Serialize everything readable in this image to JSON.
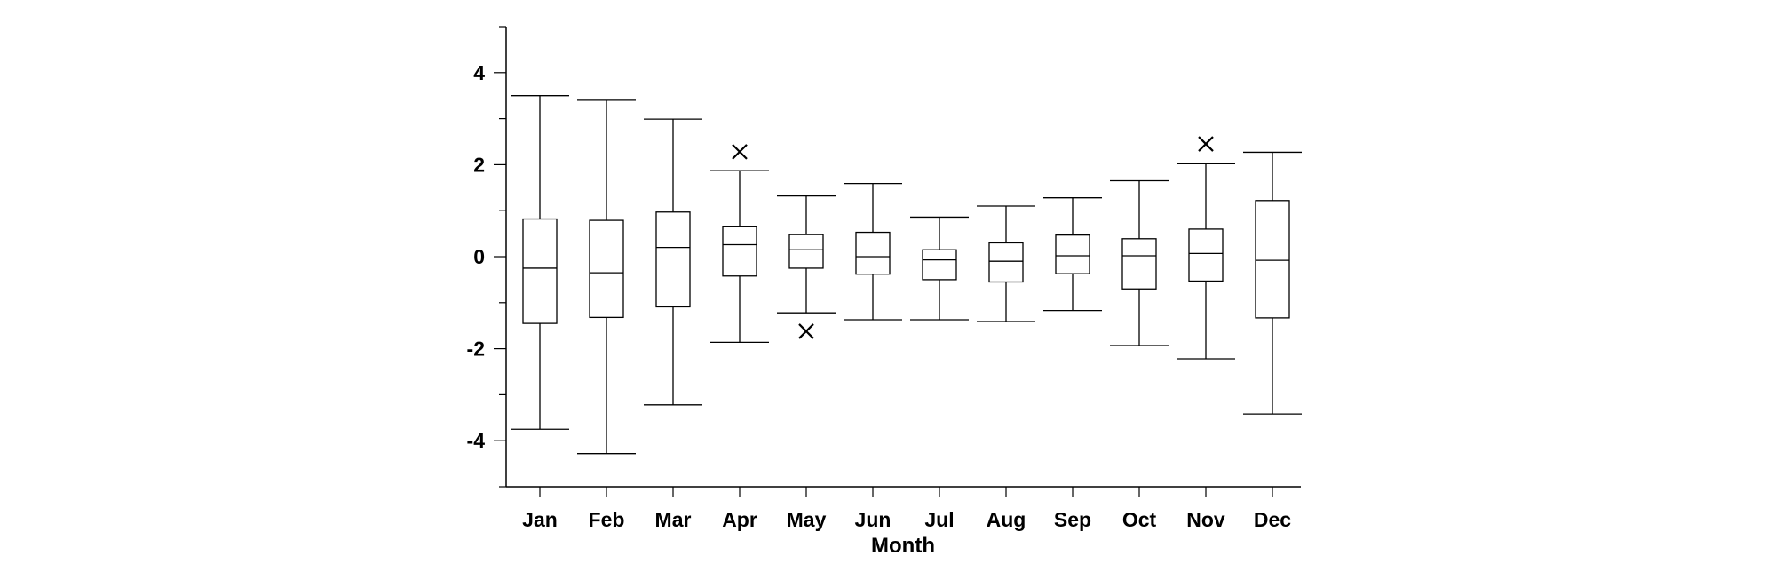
{
  "chart_data": {
    "type": "box",
    "xlabel": "Month",
    "ylabel": "",
    "ylim": [
      -5,
      5
    ],
    "yticks": [
      4,
      2,
      0,
      -2,
      -4
    ],
    "grid": false,
    "categories": [
      "Jan",
      "Feb",
      "Mar",
      "Apr",
      "May",
      "Jun",
      "Jul",
      "Aug",
      "Sep",
      "Oct",
      "Nov",
      "Dec"
    ],
    "boxes": [
      {
        "whisker_low": -3.75,
        "q1": -1.45,
        "median": -0.25,
        "q3": 0.82,
        "whisker_high": 3.5,
        "outliers": []
      },
      {
        "whisker_low": -4.28,
        "q1": -1.32,
        "median": -0.35,
        "q3": 0.79,
        "whisker_high": 3.4,
        "outliers": []
      },
      {
        "whisker_low": -3.22,
        "q1": -1.09,
        "median": 0.2,
        "q3": 0.97,
        "whisker_high": 2.99,
        "outliers": []
      },
      {
        "whisker_low": -1.86,
        "q1": -0.42,
        "median": 0.26,
        "q3": 0.65,
        "whisker_high": 1.87,
        "outliers": [
          2.28
        ]
      },
      {
        "whisker_low": -1.22,
        "q1": -0.25,
        "median": 0.15,
        "q3": 0.48,
        "whisker_high": 1.32,
        "outliers": [
          -1.62
        ]
      },
      {
        "whisker_low": -1.37,
        "q1": -0.38,
        "median": 0.0,
        "q3": 0.53,
        "whisker_high": 1.59,
        "outliers": []
      },
      {
        "whisker_low": -1.37,
        "q1": -0.5,
        "median": -0.07,
        "q3": 0.15,
        "whisker_high": 0.86,
        "outliers": []
      },
      {
        "whisker_low": -1.41,
        "q1": -0.55,
        "median": -0.1,
        "q3": 0.3,
        "whisker_high": 1.1,
        "outliers": []
      },
      {
        "whisker_low": -1.17,
        "q1": -0.37,
        "median": 0.02,
        "q3": 0.47,
        "whisker_high": 1.28,
        "outliers": []
      },
      {
        "whisker_low": -1.93,
        "q1": -0.7,
        "median": 0.02,
        "q3": 0.39,
        "whisker_high": 1.65,
        "outliers": []
      },
      {
        "whisker_low": -2.22,
        "q1": -0.53,
        "median": 0.07,
        "q3": 0.6,
        "whisker_high": 2.02,
        "outliers": [
          2.45
        ]
      },
      {
        "whisker_low": -3.42,
        "q1": -1.33,
        "median": -0.08,
        "q3": 1.22,
        "whisker_high": 2.27,
        "outliers": []
      }
    ]
  }
}
